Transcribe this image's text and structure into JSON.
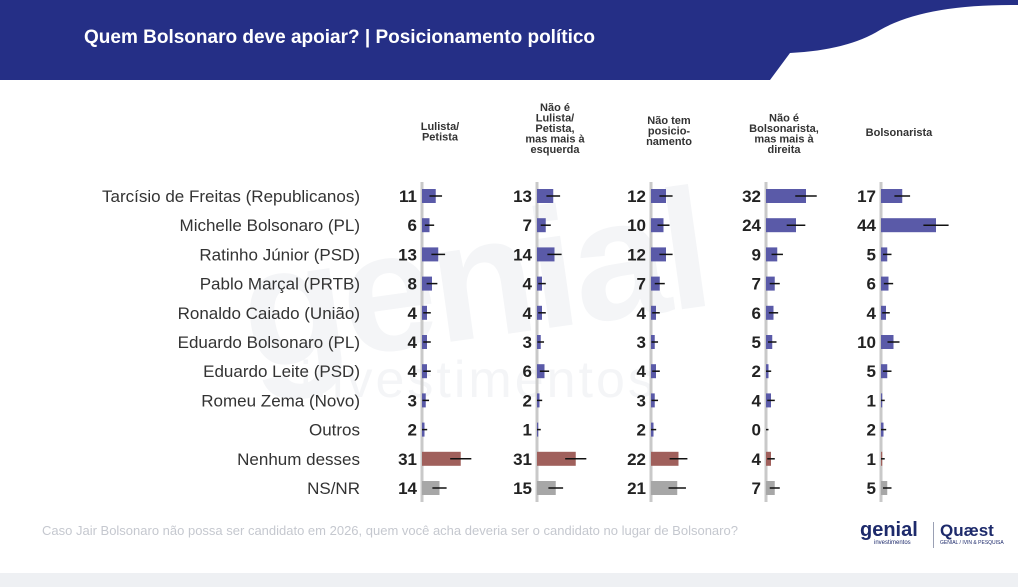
{
  "header": {
    "title": "Quem Bolsonaro deve apoiar? | Posicionamento político",
    "color": "#252f86"
  },
  "watermark": {
    "brand": "genial",
    "subtitle": "investimentos"
  },
  "chart_data": {
    "type": "bar",
    "orientation": "horizontal",
    "categories": [
      "Tarcísio de Freitas (Republicanos)",
      "Michelle Bolsonaro (PL)",
      "Ratinho Júnior (PSD)",
      "Pablo Marçal (PRTB)",
      "Ronaldo Caiado (União)",
      "Eduardo Bolsonaro (PL)",
      "Eduardo Leite (PSD)",
      "Romeu Zema (Novo)",
      "Outros",
      "Nenhum desses",
      "NS/NR"
    ],
    "series": [
      {
        "name": "Lulista/ Petista",
        "header_lines": [
          "Lulista/",
          "Petista"
        ],
        "values": [
          11,
          6,
          13,
          8,
          4,
          4,
          4,
          3,
          2,
          31,
          14
        ]
      },
      {
        "name": "Não é Lulista/ Petista, mas mais à esquerda",
        "header_lines": [
          "Não é",
          "Lulista/",
          "Petista,",
          "mas mais à",
          "esquerda"
        ],
        "values": [
          13,
          7,
          14,
          4,
          4,
          3,
          6,
          2,
          1,
          31,
          15
        ]
      },
      {
        "name": "Não tem posicio-namento",
        "header_lines": [
          "Não tem",
          "posicio-",
          "namento"
        ],
        "values": [
          12,
          10,
          12,
          7,
          4,
          3,
          4,
          3,
          2,
          22,
          21
        ]
      },
      {
        "name": "Não é Bolsonarista, mas mais à direita",
        "header_lines": [
          "Não é",
          "Bolsonarista,",
          "mas mais à",
          "direita"
        ],
        "values": [
          32,
          24,
          9,
          7,
          6,
          5,
          2,
          4,
          0,
          4,
          7
        ]
      },
      {
        "name": "Bolsonarista",
        "header_lines": [
          "Bolsonarista"
        ],
        "values": [
          17,
          44,
          5,
          6,
          4,
          10,
          5,
          1,
          2,
          1,
          5
        ]
      }
    ],
    "row_colors": [
      "#5a5aa8",
      "#5a5aa8",
      "#5a5aa8",
      "#5a5aa8",
      "#5a5aa8",
      "#5a5aa8",
      "#5a5aa8",
      "#5a5aa8",
      "#5a5aa8",
      "#a0605c",
      "#a7a7a7"
    ],
    "axis_color": "#c9c9c9"
  },
  "footnote": "Caso Jair Bolsonaro não possa ser candidato em 2026, quem você acha deveria ser o candidato no lugar de Bolsonaro?",
  "logos": {
    "genial": "genial",
    "genial_sub": "investimentos",
    "quaest": "Quæst",
    "quaest_sub": "GENIAL / IVIN & PESQUISA"
  }
}
